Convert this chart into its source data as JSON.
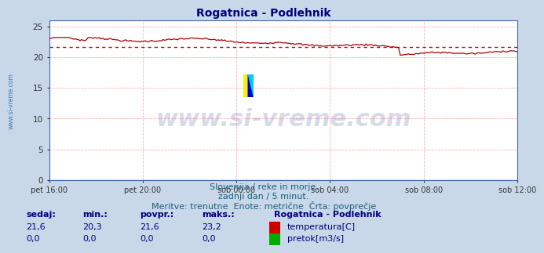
{
  "title": "Rogatnica - Podlehnik",
  "title_color": "#000080",
  "title_fontsize": 10,
  "bg_color": "#c8d8e8",
  "plot_bg_color": "#ffffff",
  "x_labels": [
    "pet 16:00",
    "pet 20:00",
    "sob 00:00",
    "sob 04:00",
    "sob 08:00",
    "sob 12:00"
  ],
  "x_ticks_norm": [
    0.0,
    0.2,
    0.4,
    0.6,
    0.8,
    1.0
  ],
  "n_points": 289,
  "ylim": [
    0,
    26
  ],
  "yticks": [
    0,
    5,
    10,
    15,
    20,
    25
  ],
  "temp_color": "#aa0000",
  "temp_avg": 21.6,
  "temp_min": 20.3,
  "temp_max": 23.2,
  "temp_current": 21.6,
  "flow_color": "#00aa00",
  "flow_avg": 0.0,
  "grid_color_v": "#ffb0b0",
  "grid_color_h": "#ffb0b0",
  "avg_line_color": "#cc0000",
  "watermark": "www.si-vreme.com",
  "watermark_color": "#1a3a8a",
  "watermark_alpha": 0.18,
  "watermark_fontsize": 22,
  "left_text": "www.si-vreme.com",
  "left_text_color": "#4477bb",
  "subtitle1": "Slovenija / reke in morje.",
  "subtitle2": "zadnji dan / 5 minut.",
  "subtitle3": "Meritve: trenutne  Enote: metrične  Črta: povprečje",
  "subtitle_color": "#1a6080",
  "subtitle_fontsize": 8,
  "legend_title": "Rogatnica - Podlehnik",
  "legend_items": [
    "temperatura[C]",
    "pretok[m3/s]"
  ],
  "legend_colors": [
    "#cc0000",
    "#00aa00"
  ],
  "table_headers": [
    "sedaj:",
    "min.:",
    "povpr.:",
    "maks.:"
  ],
  "table_row1": [
    "21,6",
    "20,3",
    "21,6",
    "23,2"
  ],
  "table_row2": [
    "0,0",
    "0,0",
    "0,0",
    "0,0"
  ],
  "table_color": "#000080",
  "table_value_color": "#000080",
  "table_fontsize": 8,
  "border_color": "#6688aa",
  "tick_color": "#333333",
  "spine_color": "#4466aa"
}
